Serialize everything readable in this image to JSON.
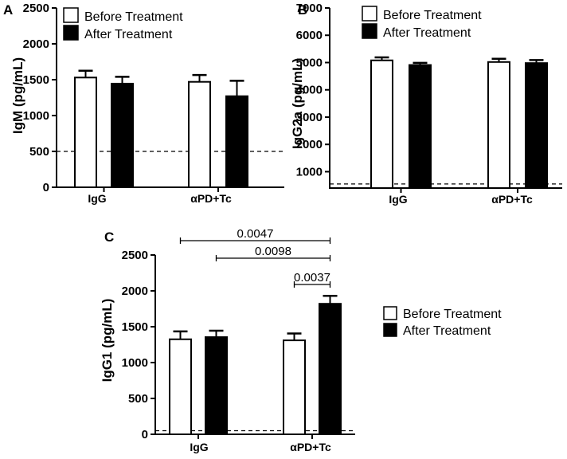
{
  "chart_data": [
    {
      "panel": "A",
      "type": "bar",
      "ylabel": "IgM (pg/mL)",
      "ylim": [
        0,
        2500
      ],
      "yticks": [
        0,
        500,
        1000,
        1500,
        2000,
        2500
      ],
      "categories": [
        "IgG",
        "αPD+Tc"
      ],
      "series": [
        {
          "name": "Before Treatment",
          "color": "#ffffff",
          "values": [
            1530,
            1470
          ],
          "errors": [
            95,
            95
          ]
        },
        {
          "name": "After Treatment",
          "color": "#000000",
          "values": [
            1445,
            1270
          ],
          "errors": [
            95,
            215
          ]
        }
      ],
      "dashed_line": 500,
      "legend": [
        "Before Treatment",
        "After Treatment"
      ],
      "annotations": []
    },
    {
      "panel": "B",
      "type": "bar",
      "ylabel": "IgG2a (pg/mL)",
      "ylim": [
        400,
        7000
      ],
      "yticks": [
        1000,
        2000,
        3000,
        4000,
        5000,
        6000,
        7000
      ],
      "categories": [
        "IgG",
        "αPD+Tc"
      ],
      "series": [
        {
          "name": "Before Treatment",
          "color": "#ffffff",
          "values": [
            5080,
            5020
          ],
          "errors": [
            110,
            120
          ]
        },
        {
          "name": "After Treatment",
          "color": "#000000",
          "values": [
            4910,
            4980
          ],
          "errors": [
            80,
            110
          ]
        }
      ],
      "dashed_line": 550,
      "legend": [
        "Before Treatment",
        "After Treatment"
      ],
      "annotations": []
    },
    {
      "panel": "C",
      "type": "bar",
      "ylabel": "IgG1 (pg/mL)",
      "ylim": [
        0,
        2500
      ],
      "yticks": [
        0,
        500,
        1000,
        1500,
        2000,
        2500
      ],
      "categories": [
        "IgG",
        "αPD+Tc"
      ],
      "series": [
        {
          "name": "Before Treatment",
          "color": "#ffffff",
          "values": [
            1325,
            1310
          ],
          "errors": [
            110,
            95
          ]
        },
        {
          "name": "After Treatment",
          "color": "#000000",
          "values": [
            1355,
            1820
          ],
          "errors": [
            90,
            110
          ]
        }
      ],
      "dashed_line": 50,
      "legend": [
        "Before Treatment",
        "After Treatment"
      ],
      "annotations": [
        {
          "label": "0.0047",
          "from": [
            0,
            0
          ],
          "to": [
            1,
            1
          ]
        },
        {
          "label": "0.0098",
          "from": [
            0,
            1
          ],
          "to": [
            1,
            1
          ]
        },
        {
          "label": "0.0037",
          "from": [
            1,
            0
          ],
          "to": [
            1,
            1
          ]
        }
      ]
    }
  ]
}
